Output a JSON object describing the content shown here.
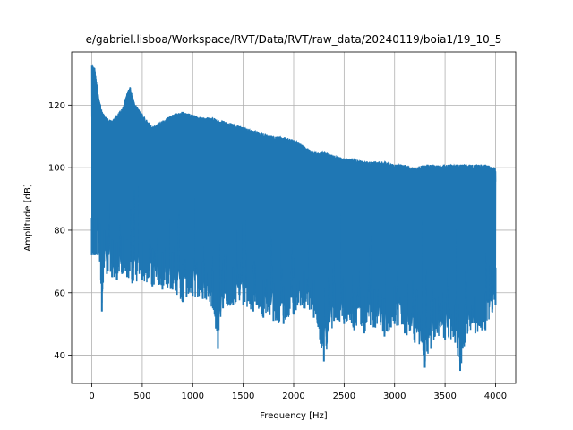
{
  "chart_data": {
    "type": "line",
    "title": "e/gabriel.lisboa/Workspace/RVT/Data/RVT/raw_data/20240119/boia1/19_10_5",
    "xlabel": "Frequency [Hz]",
    "ylabel": "Amplitude [dB]",
    "xlim": [
      -200,
      4200
    ],
    "ylim": [
      31,
      137
    ],
    "grid": true,
    "x_ticks": [
      0,
      500,
      1000,
      1500,
      2000,
      2500,
      3000,
      3500,
      4000
    ],
    "y_ticks": [
      40,
      60,
      80,
      100,
      120
    ],
    "x_tick_labels": [
      "0",
      "500",
      "1000",
      "1500",
      "2000",
      "2500",
      "3000",
      "3500",
      "4000"
    ],
    "y_tick_labels": [
      "40",
      "60",
      "80",
      "100",
      "120"
    ],
    "series": [
      {
        "color": "#1f77b4",
        "upper_envelope": {
          "x": [
            0,
            30,
            60,
            100,
            150,
            200,
            250,
            300,
            350,
            380,
            420,
            480,
            550,
            600,
            700,
            800,
            900,
            1000,
            1100,
            1200,
            1300,
            1400,
            1500,
            1600,
            1700,
            1800,
            1900,
            2000,
            2100,
            2200,
            2300,
            2400,
            2500,
            2600,
            2700,
            2800,
            2900,
            3000,
            3100,
            3200,
            3300,
            3400,
            3500,
            3600,
            3700,
            3800,
            3900,
            4000
          ],
          "y": [
            133,
            132,
            124,
            118,
            116,
            115,
            117,
            119,
            124,
            126,
            121,
            118,
            115,
            113,
            115,
            117,
            118,
            117,
            116,
            116,
            115,
            114,
            113,
            112,
            111,
            110,
            110,
            109,
            107,
            105,
            105,
            104,
            103,
            103,
            102,
            102,
            102,
            101,
            101,
            100,
            101,
            101,
            101,
            101,
            101,
            101,
            101,
            100
          ]
        },
        "lower_envelope": {
          "x": [
            0,
            30,
            60,
            80,
            100,
            120,
            150,
            200,
            250,
            300,
            350,
            400,
            500,
            600,
            700,
            800,
            900,
            1000,
            1100,
            1200,
            1250,
            1300,
            1400,
            1500,
            1600,
            1700,
            1800,
            1900,
            2000,
            2100,
            2200,
            2300,
            2400,
            2500,
            2600,
            2700,
            2800,
            2900,
            3000,
            3100,
            3200,
            3300,
            3400,
            3500,
            3600,
            3650,
            3700,
            3800,
            3900,
            4000
          ],
          "y": [
            72,
            72,
            72,
            70,
            54,
            68,
            66,
            65,
            64,
            66,
            65,
            63,
            64,
            62,
            61,
            61,
            57,
            59,
            58,
            55,
            42,
            55,
            56,
            56,
            54,
            52,
            51,
            50,
            53,
            55,
            52,
            38,
            51,
            50,
            48,
            47,
            49,
            46,
            50,
            47,
            44,
            36,
            46,
            45,
            44,
            35,
            44,
            47,
            48,
            56
          ]
        }
      }
    ]
  }
}
